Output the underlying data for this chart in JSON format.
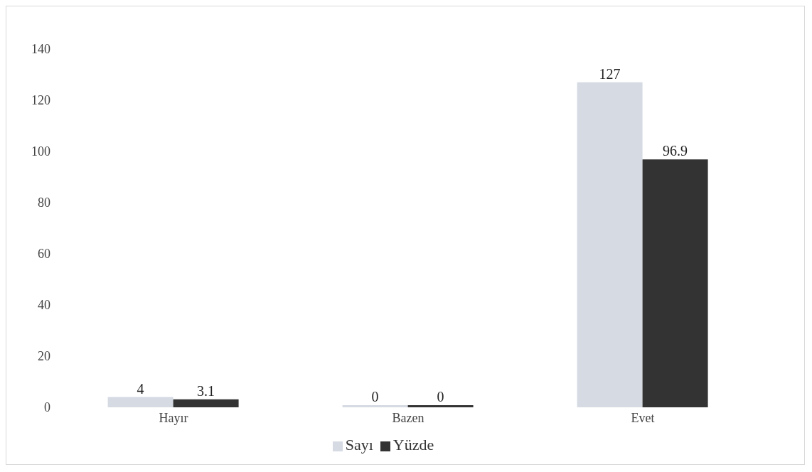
{
  "chart_data": {
    "type": "bar",
    "categories": [
      "Hayır",
      "Bazen",
      "Evet"
    ],
    "series": [
      {
        "name": "Sayı",
        "color": "#d5dae3",
        "values": [
          4,
          0,
          127
        ]
      },
      {
        "name": "Yüzde",
        "color": "#333333",
        "values": [
          3.1,
          0,
          96.9
        ]
      }
    ],
    "ylim": [
      0,
      140
    ],
    "yticks": [
      0,
      20,
      40,
      60,
      80,
      100,
      120,
      140
    ],
    "grid": false,
    "legend": "bottom",
    "data_labels": true
  }
}
